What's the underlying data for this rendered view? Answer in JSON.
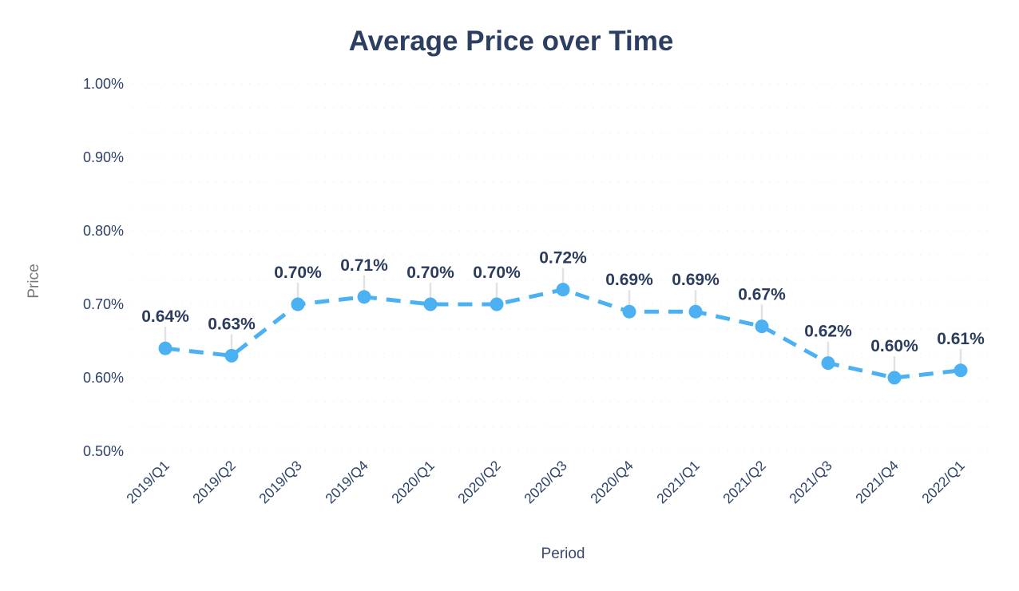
{
  "chart_data": {
    "type": "line",
    "title": "Average Price over Time",
    "xlabel": "Period",
    "ylabel": "Price",
    "categories": [
      "2019/Q1",
      "2019/Q2",
      "2019/Q3",
      "2019/Q4",
      "2020/Q1",
      "2020/Q2",
      "2020/Q3",
      "2020/Q4",
      "2021/Q1",
      "2021/Q2",
      "2021/Q3",
      "2021/Q4",
      "2022/Q1"
    ],
    "series": [
      {
        "name": "Average Price",
        "values": [
          0.64,
          0.63,
          0.7,
          0.71,
          0.7,
          0.7,
          0.72,
          0.69,
          0.69,
          0.67,
          0.62,
          0.6,
          0.61
        ],
        "point_labels": [
          "0.64%",
          "0.63%",
          "0.70%",
          "0.71%",
          "0.70%",
          "0.70%",
          "0.72%",
          "0.69%",
          "0.69%",
          "0.67%",
          "0.62%",
          "0.60%",
          "0.61%"
        ]
      }
    ],
    "yticks": [
      {
        "label": "1.00%",
        "value": 1.0
      },
      {
        "label": "0.90%",
        "value": 0.9
      },
      {
        "label": "0.80%",
        "value": 0.8
      },
      {
        "label": "0.70%",
        "value": 0.7
      },
      {
        "label": "0.60%",
        "value": 0.6
      },
      {
        "label": "0.50%",
        "value": 0.5
      }
    ],
    "ylim": [
      0.5,
      1.0
    ],
    "line_style": "dashed",
    "grid": "faint-dotted-horizontal",
    "legend": "none",
    "colors": {
      "line": "#4bb1f3",
      "marker": "#4bb1f3",
      "title_text": "#2d3e63",
      "tick_text": "#2e4369",
      "data_label_text": "#2c3c5e",
      "y_axis_title_text": "#77797c",
      "x_axis_title_text": "#39496e",
      "connector": "#e2e2e2",
      "grid_line": "#eeeeee",
      "background": "#ffffff"
    }
  }
}
